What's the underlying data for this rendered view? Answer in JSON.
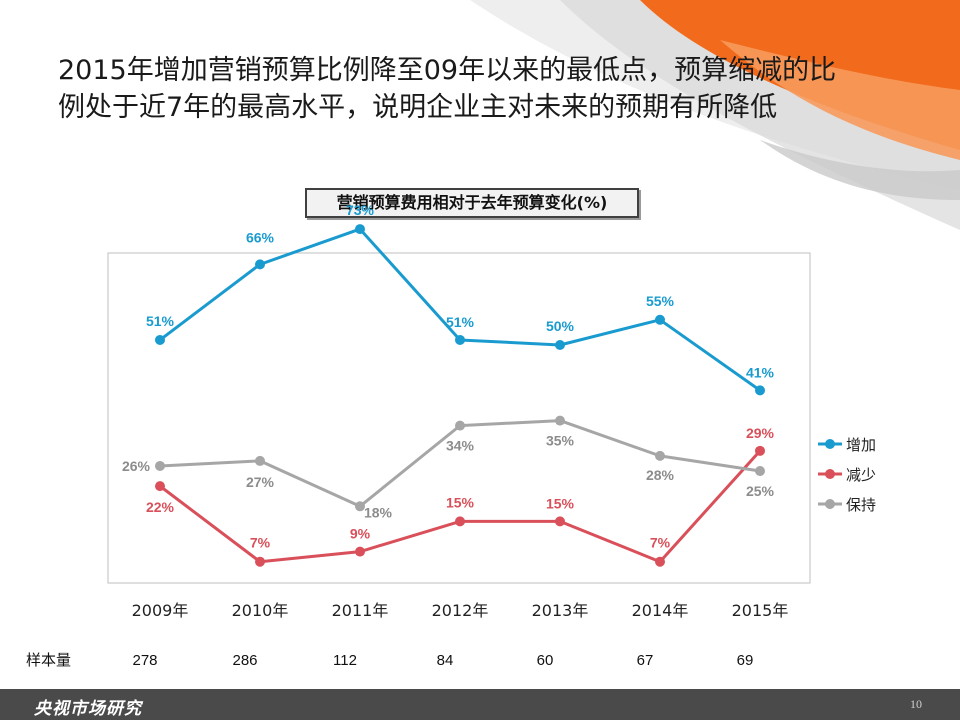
{
  "headline": {
    "line1": "2015年增加营销预算比例降至09年以来的最低点，预算缩减的比",
    "line2": "例处于近7年的最高水平，说明企业主对未来的预期有所降低"
  },
  "colors": {
    "increase": "#1a9bd0",
    "decrease": "#d9505a",
    "maintain": "#a6a6a6",
    "accent_orange": "#f26a1b"
  },
  "chart_data": {
    "type": "line",
    "title": "营销预算费用相对于去年预算变化(%)",
    "categories": [
      "2009年",
      "2010年",
      "2011年",
      "2012年",
      "2013年",
      "2014年",
      "2015年"
    ],
    "ylim": [
      0,
      80
    ],
    "series": [
      {
        "name": "增加",
        "color": "#1a9bd0",
        "values": [
          51,
          66,
          73,
          51,
          50,
          55,
          41
        ]
      },
      {
        "name": "减少",
        "color": "#d9505a",
        "values": [
          22,
          7,
          9,
          15,
          15,
          7,
          29
        ]
      },
      {
        "name": "保持",
        "color": "#a6a6a6",
        "values": [
          26,
          27,
          18,
          34,
          35,
          28,
          25
        ]
      }
    ],
    "value_suffix": "%",
    "legend_position": "right",
    "sample_size": {
      "label": "样本量",
      "values": [
        "278",
        "286",
        "112",
        "84",
        "60",
        "67",
        "69"
      ]
    }
  },
  "footer": {
    "brand": "央视市场研究",
    "page_number": "10"
  }
}
